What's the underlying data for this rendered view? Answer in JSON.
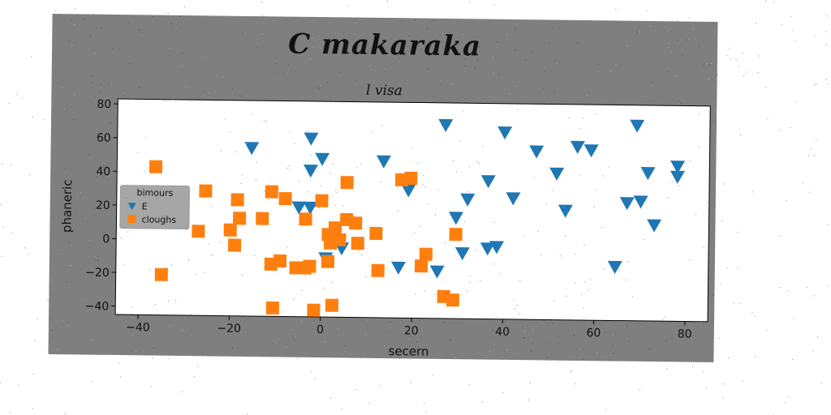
{
  "chart_data": {
    "type": "scatter",
    "title": "C makaraka",
    "subtitle": "l visa",
    "xlabel": "secern",
    "ylabel": "phaneric",
    "xlim": [
      -45,
      85
    ],
    "ylim": [
      -45,
      83
    ],
    "xticks": [
      -40,
      -20,
      0,
      20,
      40,
      60,
      80
    ],
    "yticks": [
      -40,
      -20,
      0,
      20,
      40,
      60,
      80
    ],
    "grid": false,
    "legend": {
      "title": "bimours",
      "placement": "center-left"
    },
    "series": [
      {
        "name": "E",
        "marker": "triangle-down",
        "color": "#1f77b4",
        "points": [
          [
            -15.5,
            55
          ],
          [
            -2.5,
            61
          ],
          [
            0,
            49
          ],
          [
            -2.5,
            42
          ],
          [
            13.5,
            48
          ],
          [
            19,
            31
          ],
          [
            27,
            70
          ],
          [
            40,
            66
          ],
          [
            47,
            55
          ],
          [
            51.5,
            42
          ],
          [
            56,
            58
          ],
          [
            59,
            56
          ],
          [
            69,
            71
          ],
          [
            71.5,
            43
          ],
          [
            78,
            47
          ],
          [
            78,
            41
          ],
          [
            36.5,
            37
          ],
          [
            42,
            27
          ],
          [
            32,
            26
          ],
          [
            29.5,
            15
          ],
          [
            31,
            -6
          ],
          [
            36.5,
            -3
          ],
          [
            38.5,
            -2
          ],
          [
            25.5,
            -17
          ],
          [
            17,
            -15
          ],
          [
            53.5,
            20
          ],
          [
            67,
            25
          ],
          [
            70,
            26
          ],
          [
            73,
            12
          ],
          [
            64.5,
            -13
          ],
          [
            -5,
            20
          ],
          [
            -2.5,
            20
          ],
          [
            1,
            -10
          ],
          [
            4.5,
            -4
          ]
        ]
      },
      {
        "name": "cloughs",
        "marker": "square",
        "color": "#ff7f0e",
        "points": [
          [
            -36.5,
            43
          ],
          [
            -25.5,
            29
          ],
          [
            -18.5,
            24
          ],
          [
            -11,
            29
          ],
          [
            -8,
            25
          ],
          [
            0,
            24
          ],
          [
            5.5,
            35
          ],
          [
            17.5,
            37
          ],
          [
            19.5,
            38
          ],
          [
            -27,
            5
          ],
          [
            -20,
            6
          ],
          [
            -18,
            13
          ],
          [
            -19,
            -3
          ],
          [
            -13,
            13
          ],
          [
            -3.5,
            13
          ],
          [
            1.5,
            4
          ],
          [
            2,
            -1
          ],
          [
            3,
            8
          ],
          [
            4,
            1
          ],
          [
            5.5,
            13
          ],
          [
            7.5,
            11
          ],
          [
            8,
            -1
          ],
          [
            12,
            5
          ],
          [
            29.5,
            5
          ],
          [
            -35,
            -21
          ],
          [
            -11,
            -14
          ],
          [
            -9,
            -12
          ],
          [
            -5.5,
            -16
          ],
          [
            -3.5,
            -16
          ],
          [
            -2.5,
            -15
          ],
          [
            1.5,
            -12
          ],
          [
            12.5,
            -17
          ],
          [
            22,
            -14
          ],
          [
            23,
            -7
          ],
          [
            27,
            -32
          ],
          [
            29,
            -34
          ],
          [
            -10.5,
            -40
          ],
          [
            -1.5,
            -41
          ],
          [
            2.5,
            -38
          ]
        ]
      }
    ]
  }
}
